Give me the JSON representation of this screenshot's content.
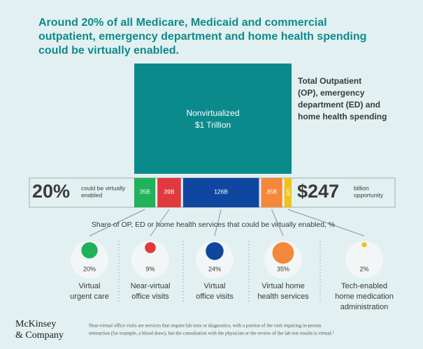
{
  "header": {
    "title_lines": [
      "Around 20% of all Medicare, Medicaid and commercial",
      "outpatient, emergency department and home health spending",
      "could be virtually enabled."
    ]
  },
  "total_block": {
    "label_lines": [
      "Nonvirtualized",
      "$1 Trillion"
    ],
    "side_lines": [
      "Total Outpatient",
      "(OP), emergency",
      "department (ED) and",
      "home health spending"
    ]
  },
  "share": {
    "big": "20%",
    "text_lines": [
      "could be virtually",
      "enabled"
    ]
  },
  "opportunity": {
    "big": "$247",
    "text_lines": [
      "billion",
      "opportunity"
    ]
  },
  "segments": [
    {
      "value": 35,
      "label": "35B",
      "color": "#1fb25a"
    },
    {
      "value": 39,
      "label": "39B",
      "color": "#e03a3e"
    },
    {
      "value": 126,
      "label": "126B",
      "color": "#0f47a0"
    },
    {
      "value": 35,
      "label": "35B",
      "color": "#f5873a"
    },
    {
      "value": 12,
      "label": "12B",
      "color": "#f2c21b"
    }
  ],
  "subtitle": "Share of OP, ED or home health services that could be virtually enabled, %",
  "services": [
    {
      "percent": 20,
      "label": "20%",
      "name_lines": [
        "Virtual",
        "urgent care"
      ]
    },
    {
      "percent": 9,
      "label": "9%",
      "name_lines": [
        "Near-virtual",
        "office visits"
      ]
    },
    {
      "percent": 24,
      "label": "24%",
      "name_lines": [
        "Virtual",
        "office visits"
      ]
    },
    {
      "percent": 35,
      "label": "35%",
      "name_lines": [
        "Virtual home",
        "health services"
      ]
    },
    {
      "percent": 2,
      "label": "2%",
      "name_lines": [
        "Tech-enabled",
        "home medication",
        "administration"
      ]
    }
  ],
  "footer": {
    "logo_lines": [
      "McKinsey",
      "& Company"
    ],
    "note_lines": [
      "Near-virtual office visits are services that require lab tests or diagnostics, with a portion of the visit requiring in-person",
      "interaction (for example, a blood draw), but the consultation with the physician or the review of the lab test results is virtual.³"
    ]
  }
}
